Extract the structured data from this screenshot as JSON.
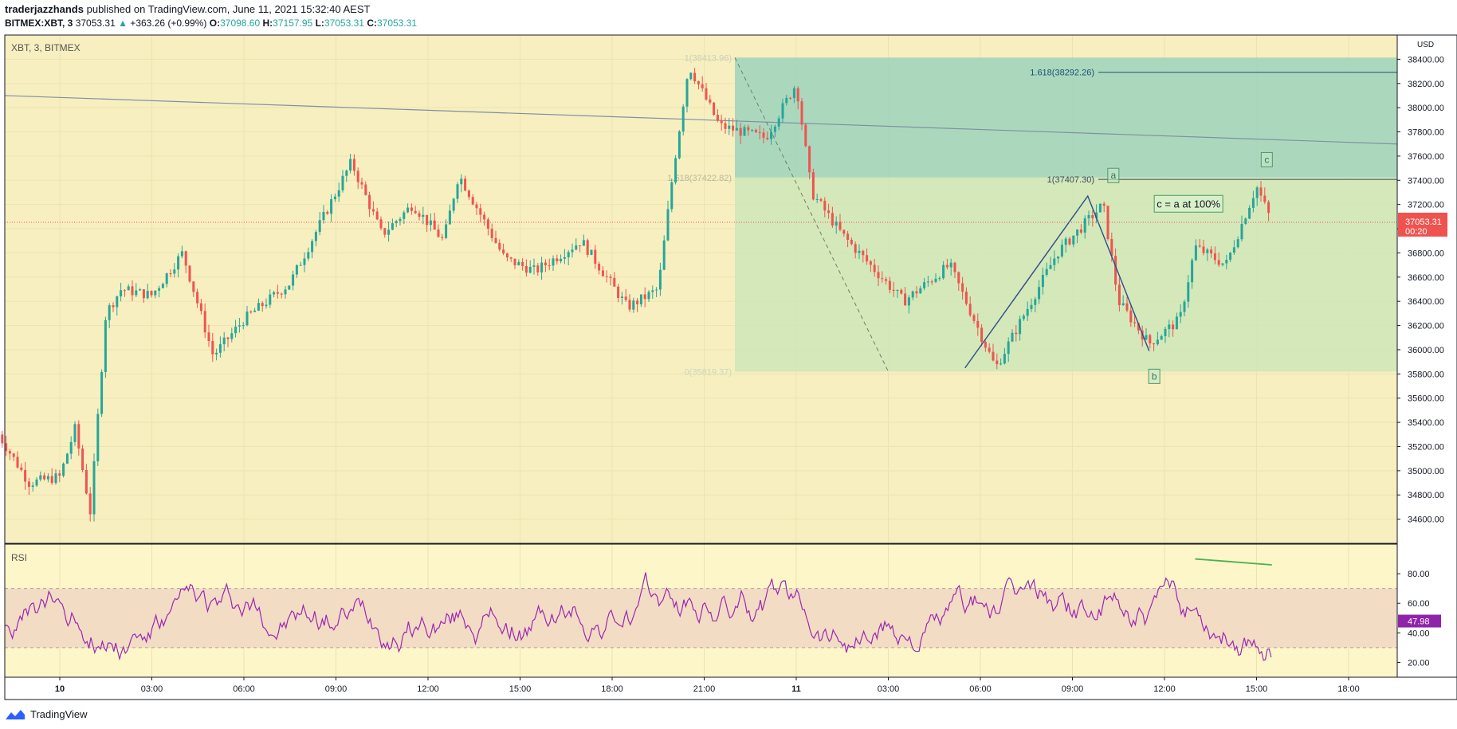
{
  "header": {
    "author": "traderjazzhands",
    "published": "published on TradingView.com, June 11, 2021 15:32:40 AEST"
  },
  "ohlc": {
    "symbol": "BITMEX:XBT, 3",
    "last": "37053.31",
    "change": "+363.26 (+0.99%)",
    "o_label": "O:",
    "o": "37098.60",
    "h_label": "H:",
    "h": "37157.95",
    "l_label": "L:",
    "l": "37053.31",
    "c_label": "C:",
    "c": "37053.31"
  },
  "footer": {
    "brand": "TradingView"
  },
  "colors": {
    "bg_yellow": "#f7efbf",
    "teal_zone": "#9ed4bb",
    "green_zone": "#cfe7b8",
    "up": "#26a69a",
    "down": "#ef5350",
    "rsi_line": "#9c27b0",
    "rsi_band": "#f2dcc4",
    "price_tag": "#ef5350",
    "rsi_tag": "#8e24aa",
    "trend_line": "#7f8fa6",
    "fib_line": "#1e4f7a",
    "wave_line": "#2b4c8c",
    "divergence": "#4caf50"
  },
  "chart_data": [
    {
      "type": "candlestick",
      "pane_label": "XBT, 3, BITMEX",
      "unit": "USD",
      "ylim": [
        34400,
        38600
      ],
      "x_tick_labels": [
        "10",
        "03:00",
        "06:00",
        "09:00",
        "12:00",
        "15:00",
        "18:00",
        "21:00",
        "11",
        "03:00",
        "06:00",
        "09:00",
        "12:00",
        "15:00",
        "18:00"
      ],
      "y_tick_labels": [
        "38400.00",
        "38200.00",
        "38000.00",
        "37800.00",
        "37600.00",
        "37400.00",
        "37200.00",
        "37000.00",
        "36800.00",
        "36600.00",
        "36400.00",
        "36200.00",
        "36000.00",
        "35800.00",
        "35600.00",
        "35400.00",
        "35200.00",
        "35000.00",
        "34800.00",
        "34600.00"
      ],
      "y_ticks": [
        38400,
        38200,
        38000,
        37800,
        37600,
        37400,
        37200,
        37000,
        36800,
        36600,
        36400,
        36200,
        36000,
        35800,
        35600,
        35400,
        35200,
        35000,
        34800,
        34600
      ],
      "price_path": [
        {
          "t": "10 -02:00",
          "p": 35300
        },
        {
          "t": "10 -01:00",
          "p": 34900
        },
        {
          "t": "10 00:00",
          "p": 34950
        },
        {
          "t": "10 00:30",
          "p": 35350
        },
        {
          "t": "10 01:00",
          "p": 34650
        },
        {
          "t": "10 01:30",
          "p": 36300
        },
        {
          "t": "10 02:00",
          "p": 36500
        },
        {
          "t": "10 03:00",
          "p": 36450
        },
        {
          "t": "10 04:00",
          "p": 36800
        },
        {
          "t": "10 05:00",
          "p": 35950
        },
        {
          "t": "10 06:00",
          "p": 36250
        },
        {
          "t": "10 07:30",
          "p": 36550
        },
        {
          "t": "10 08:30",
          "p": 37050
        },
        {
          "t": "10 09:30",
          "p": 37550
        },
        {
          "t": "10 10:30",
          "p": 36950
        },
        {
          "t": "10 11:30",
          "p": 37200
        },
        {
          "t": "10 12:30",
          "p": 36900
        },
        {
          "t": "10 13:00",
          "p": 37450
        },
        {
          "t": "10 14:30",
          "p": 36750
        },
        {
          "t": "10 15:30",
          "p": 36650
        },
        {
          "t": "10 17:00",
          "p": 36900
        },
        {
          "t": "10 18:30",
          "p": 36350
        },
        {
          "t": "10 19:30",
          "p": 36500
        },
        {
          "t": "10 20:00",
          "p": 37500
        },
        {
          "t": "10 20:30",
          "p": 38350
        },
        {
          "t": "10 21:30",
          "p": 37850
        },
        {
          "t": "10 23:00",
          "p": 37750
        },
        {
          "t": "11 00:00",
          "p": 38200
        },
        {
          "t": "11 00:30",
          "p": 37300
        },
        {
          "t": "11 01:30",
          "p": 36950
        },
        {
          "t": "11 03:30",
          "p": 36400
        },
        {
          "t": "11 05:00",
          "p": 36700
        },
        {
          "t": "11 06:30",
          "p": 35850
        },
        {
          "t": "11 08:30",
          "p": 36800
        },
        {
          "t": "11 10:00",
          "p": 37200
        },
        {
          "t": "11 10:30",
          "p": 36400
        },
        {
          "t": "11 11:30",
          "p": 36050
        },
        {
          "t": "11 12:30",
          "p": 36250
        },
        {
          "t": "11 13:00",
          "p": 36850
        },
        {
          "t": "11 14:00",
          "p": 36700
        },
        {
          "t": "11 15:00",
          "p": 37350
        },
        {
          "t": "11 15:30",
          "p": 37053.31
        }
      ],
      "last_price_label": "37053.31",
      "countdown_label": "00:20",
      "fib_levels": [
        {
          "label": "1(38413.96)",
          "price": 38413.96
        },
        {
          "label": "1.618(37422.82)",
          "price": 37422.82
        },
        {
          "label": "0(35819.37)",
          "price": 35819.37
        },
        {
          "label": "1.618(38292.26)",
          "price": 38292.26
        },
        {
          "label": "1(37407.30)",
          "price": 37407.3
        }
      ],
      "wave_labels": [
        "a",
        "b",
        "c"
      ],
      "annotation": "c = a at 100%"
    },
    {
      "type": "line",
      "pane_label": "RSI",
      "ylim": [
        10,
        100
      ],
      "y_tick_labels": [
        "80.00",
        "60.00",
        "40.00",
        "20.00"
      ],
      "y_ticks": [
        80,
        60,
        40,
        20
      ],
      "band": [
        30,
        70
      ],
      "last_value_label": "47.98"
    }
  ]
}
